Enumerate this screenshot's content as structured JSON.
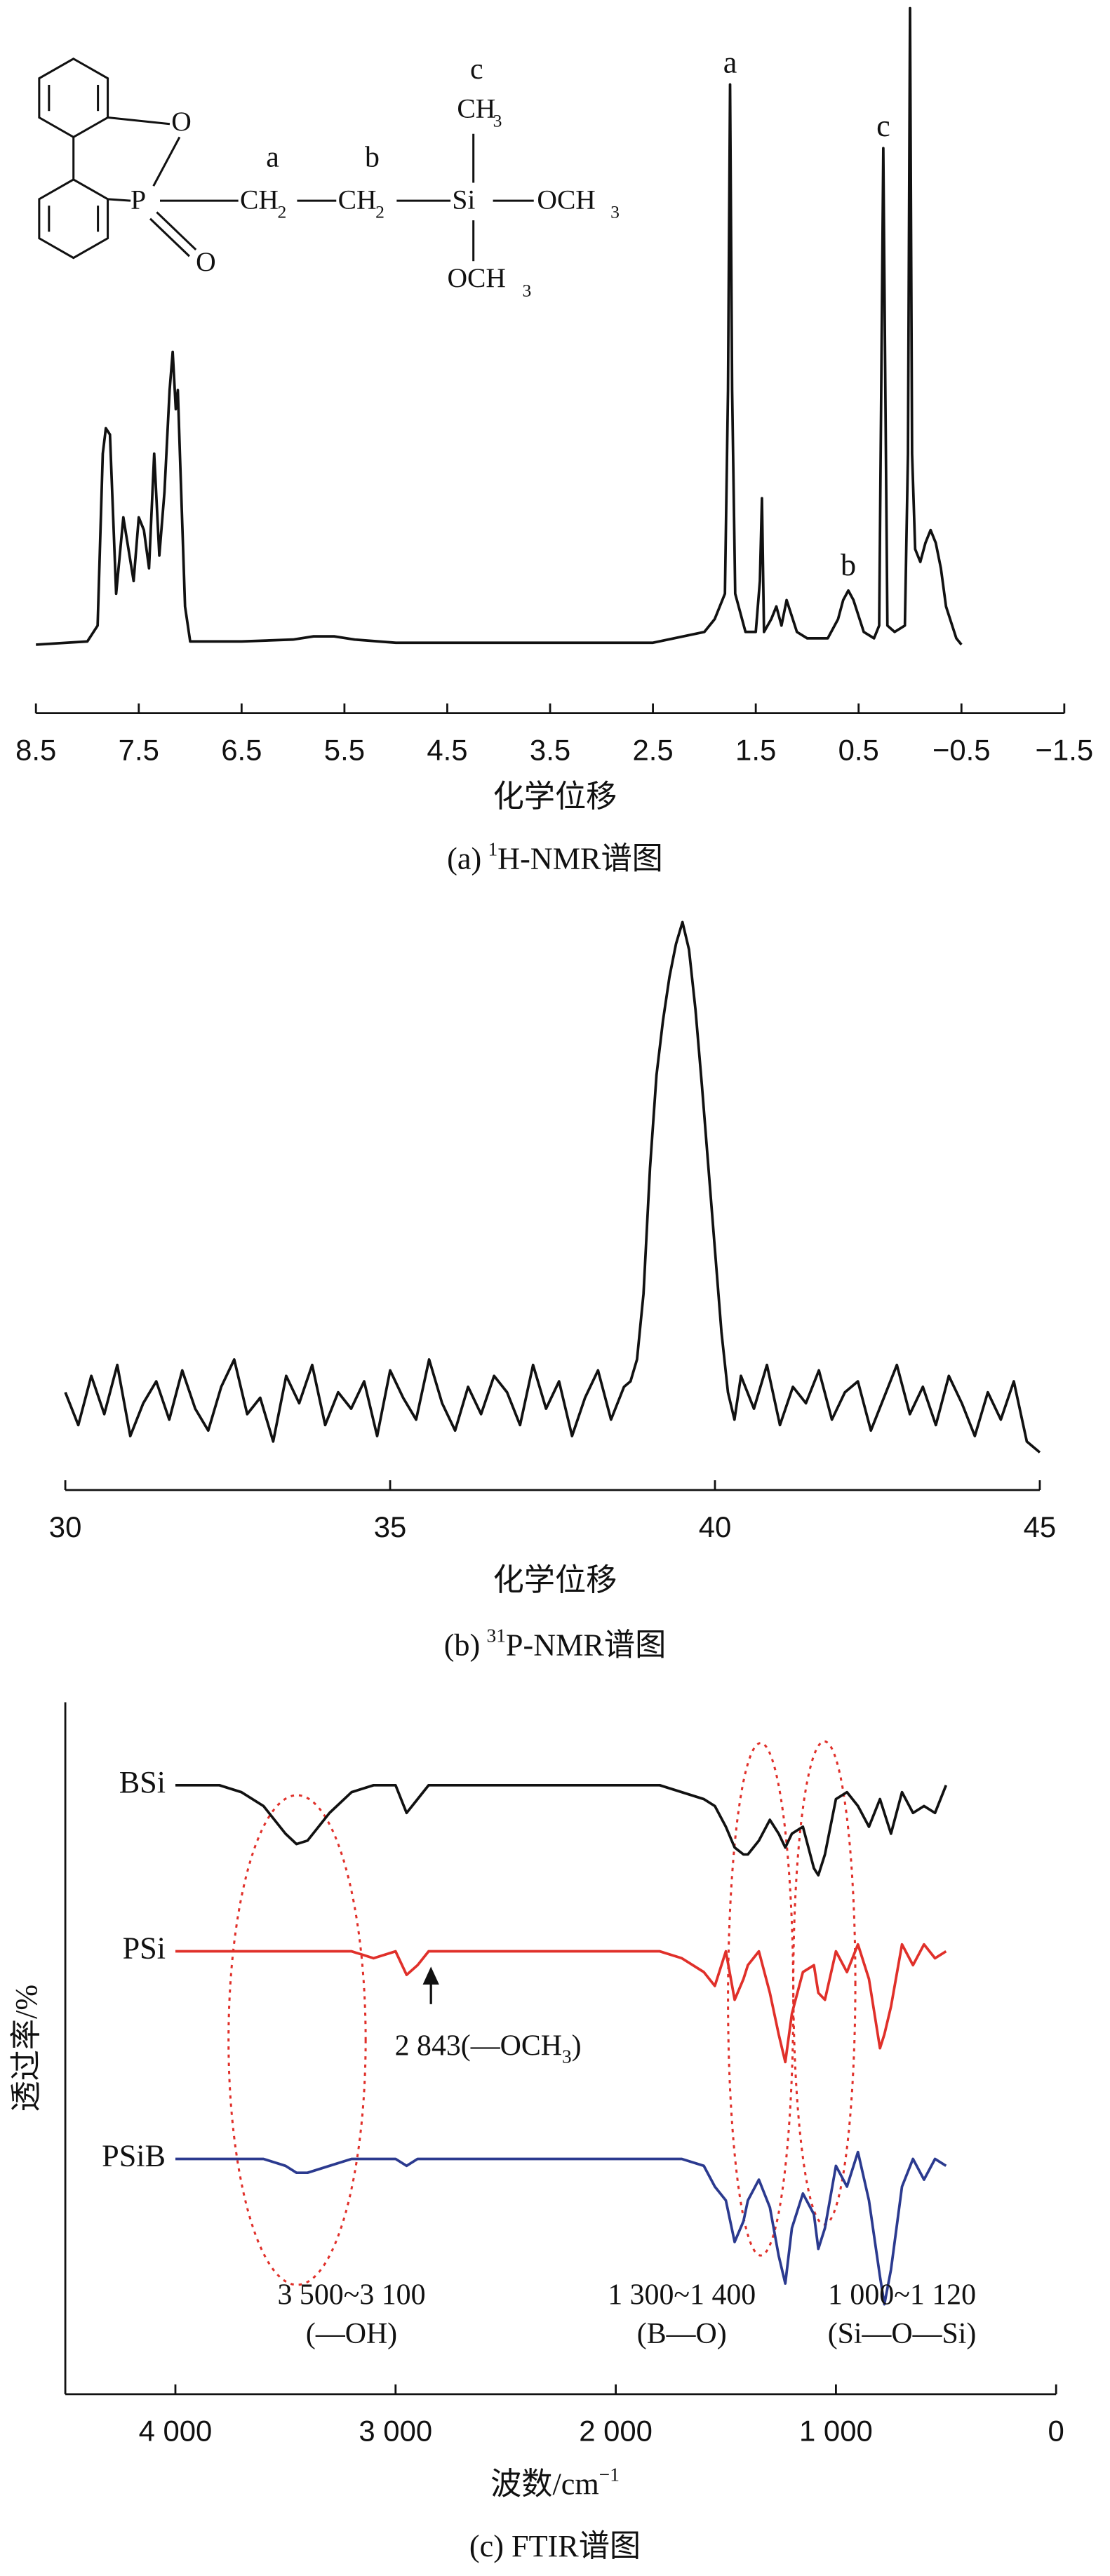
{
  "chart_data": [
    {
      "type": "line",
      "xlim": [
        8.5,
        -1.5
      ],
      "ylim": [
        0,
        100
      ],
      "xticks": [
        8.5,
        7.5,
        6.5,
        5.5,
        4.5,
        3.5,
        2.5,
        1.5,
        0.5,
        {
          "value": -0.5,
          "label": "−0.5"
        },
        {
          "value": -1.5,
          "label": "−1.5"
        }
      ],
      "xlabel": "化学位移",
      "caption": [
        "(a)",
        "1",
        "H-NMR谱图"
      ],
      "x": [
        8.5,
        8.0,
        7.9,
        7.85,
        7.82,
        7.78,
        7.72,
        7.65,
        7.6,
        7.55,
        7.5,
        7.45,
        7.4,
        7.35,
        7.3,
        7.25,
        7.2,
        7.17,
        7.14,
        7.12,
        7.1,
        7.05,
        7.0,
        6.5,
        6.0,
        5.8,
        5.6,
        5.4,
        5.0,
        4.0,
        3.0,
        2.5,
        2.0,
        1.9,
        1.8,
        1.77,
        1.75,
        1.73,
        1.7,
        1.6,
        1.5,
        1.46,
        1.44,
        1.42,
        1.35,
        1.3,
        1.25,
        1.2,
        1.1,
        1.0,
        0.8,
        0.7,
        0.65,
        0.6,
        0.55,
        0.45,
        0.35,
        0.3,
        0.28,
        0.26,
        0.24,
        0.22,
        0.15,
        0.05,
        0.02,
        0.0,
        -0.02,
        -0.05,
        -0.1,
        -0.15,
        -0.2,
        -0.25,
        -0.3,
        -0.35,
        -0.45,
        -0.5
      ],
      "series": [
        {
          "color": "#111111",
          "values": [
            0,
            0.5,
            3,
            30,
            34,
            33,
            8,
            20,
            15,
            10,
            20,
            18,
            12,
            30,
            14,
            24,
            40,
            46,
            37,
            40,
            30,
            6,
            0.5,
            0.5,
            0.8,
            1.3,
            1.3,
            0.8,
            0.3,
            0.3,
            0.3,
            0.3,
            2,
            4,
            8,
            40,
            88,
            40,
            8,
            2,
            2,
            10,
            23,
            2,
            4,
            6,
            3,
            7,
            2,
            1,
            1,
            4,
            7,
            8.5,
            7,
            2,
            1,
            3,
            40,
            78,
            40,
            3,
            2,
            3,
            30,
            100,
            30,
            15,
            13,
            16,
            18,
            16,
            12,
            6,
            1,
            0
          ]
        }
      ],
      "annotations": [
        {
          "text": "a",
          "x": 1.75,
          "y": 91
        },
        {
          "text": "b",
          "x": 0.6,
          "y": 12
        },
        {
          "text": "c",
          "x": 0.26,
          "y": 81
        }
      ],
      "structure": [
        "O",
        "P",
        "O",
        "CH",
        "2",
        "CH",
        "2",
        "Si",
        "CH",
        "3",
        "OCH",
        "3",
        "OCH",
        "3"
      ],
      "structure_marks": [
        "a",
        "b",
        "c"
      ]
    },
    {
      "type": "line",
      "xlim": [
        30,
        45
      ],
      "ylim": [
        0,
        100
      ],
      "xticks": [
        30,
        35,
        40,
        45
      ],
      "xlabel": "化学位移",
      "caption": [
        "(b)",
        "31",
        "P-NMR谱图"
      ],
      "x": [
        30.0,
        30.2,
        30.4,
        30.6,
        30.8,
        31.0,
        31.2,
        31.4,
        31.6,
        31.8,
        32.0,
        32.2,
        32.4,
        32.6,
        32.8,
        33.0,
        33.2,
        33.4,
        33.6,
        33.8,
        34.0,
        34.2,
        34.4,
        34.6,
        34.8,
        35.0,
        35.2,
        35.4,
        35.6,
        35.8,
        36.0,
        36.2,
        36.4,
        36.6,
        36.8,
        37.0,
        37.2,
        37.4,
        37.6,
        37.8,
        38.0,
        38.2,
        38.4,
        38.6,
        38.7,
        38.8,
        38.9,
        39.0,
        39.1,
        39.2,
        39.3,
        39.4,
        39.5,
        39.6,
        39.7,
        39.8,
        39.9,
        40.0,
        40.1,
        40.2,
        40.3,
        40.4,
        40.6,
        40.8,
        41.0,
        41.2,
        41.4,
        41.6,
        41.8,
        42.0,
        42.2,
        42.4,
        42.6,
        42.8,
        43.0,
        43.2,
        43.4,
        43.6,
        43.8,
        44.0,
        44.2,
        44.4,
        44.6,
        44.8,
        45.0
      ],
      "series": [
        {
          "color": "#111111",
          "values": [
            14,
            8,
            17,
            10,
            19,
            6,
            12,
            16,
            9,
            18,
            11,
            7,
            15,
            20,
            10,
            13,
            5,
            17,
            12,
            19,
            8,
            14,
            11,
            16,
            6,
            18,
            13,
            9,
            20,
            12,
            7,
            15,
            10,
            17,
            14,
            8,
            19,
            11,
            16,
            6,
            13,
            18,
            9,
            15,
            16,
            20,
            32,
            55,
            72,
            82,
            90,
            96,
            100,
            95,
            84,
            70,
            55,
            40,
            25,
            14,
            9,
            17,
            11,
            19,
            8,
            15,
            12,
            18,
            9,
            14,
            16,
            7,
            13,
            19,
            10,
            15,
            8,
            17,
            12,
            6,
            14,
            9,
            16,
            5,
            3
          ]
        }
      ]
    },
    {
      "type": "line",
      "xlim": [
        4500,
        0
      ],
      "ylim": [
        0,
        100
      ],
      "xticks": [
        {
          "value": 4000,
          "label": "4 000"
        },
        {
          "value": 3000,
          "label": "3 000"
        },
        {
          "value": 2000,
          "label": "2 000"
        },
        {
          "value": 1000,
          "label": "1 000"
        },
        0
      ],
      "xlabel": [
        "波数/cm",
        "−1"
      ],
      "ylabel": "透过率/%",
      "caption": "(c) FTIR谱图",
      "x": [
        4000,
        3800,
        3700,
        3600,
        3500,
        3450,
        3400,
        3300,
        3200,
        3100,
        3000,
        2950,
        2900,
        2850,
        2800,
        2500,
        2000,
        1800,
        1700,
        1600,
        1550,
        1500,
        1460,
        1420,
        1400,
        1350,
        1300,
        1260,
        1230,
        1200,
        1150,
        1100,
        1080,
        1050,
        1000,
        950,
        900,
        850,
        800,
        780,
        750,
        700,
        650,
        600,
        550,
        500
      ],
      "series": [
        {
          "name": "BSi",
          "color": "#111111",
          "values": [
            88,
            88,
            87,
            85,
            81,
            79.5,
            80,
            84,
            87,
            88,
            88,
            84,
            86,
            88,
            88,
            88,
            88,
            88,
            87,
            86,
            85,
            82,
            79,
            78,
            78,
            80,
            83,
            81,
            79,
            81,
            82,
            76,
            75,
            78,
            86,
            87,
            85,
            82,
            86,
            84,
            81,
            87,
            84,
            85,
            84,
            88
          ]
        },
        {
          "name": "PSi",
          "color": "#e0302a",
          "values": [
            64,
            64,
            64,
            64,
            64,
            64,
            64,
            64,
            64,
            63,
            64,
            60.6,
            62,
            64,
            64,
            64,
            64,
            64,
            63,
            61,
            59,
            64,
            57,
            60,
            62,
            64,
            58,
            52,
            48,
            55,
            61,
            62,
            58,
            57,
            64,
            61,
            65,
            60,
            50,
            52,
            56,
            65,
            62,
            65,
            63,
            64
          ]
        },
        {
          "name": "PSiB",
          "color": "#2b3a8f",
          "values": [
            34,
            34,
            34,
            34,
            33,
            32,
            32,
            33,
            34,
            34,
            34,
            33,
            34,
            34,
            34,
            34,
            34,
            34,
            34,
            33,
            30,
            28,
            22,
            25,
            28,
            31,
            27,
            20,
            16,
            24,
            29,
            26,
            21,
            24,
            33,
            30,
            35,
            28,
            17,
            13,
            18,
            30,
            34,
            31,
            34,
            33
          ]
        }
      ],
      "annotations": [
        {
          "text": [
            "2 843(—OCH",
            "3",
            ")"
          ],
          "x": 2580,
          "y": 50
        },
        {
          "text": [
            "3 500~3 100",
            "(—OH)"
          ],
          "x": 3200,
          "y": 14
        },
        {
          "text": [
            "1 300~1 400",
            "(B—O)"
          ],
          "x": 1700,
          "y": 14
        },
        {
          "text": [
            "1 000~1 120",
            "(Si—O—Si)"
          ],
          "x": 700,
          "y": 14
        }
      ]
    }
  ]
}
